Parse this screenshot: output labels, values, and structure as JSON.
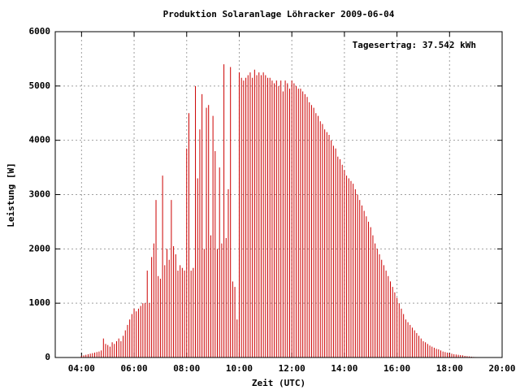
{
  "chart_data": {
    "type": "impulse",
    "title": "Produktion Solaranlage Löhracker 2009-06-04",
    "annotation": "Tagesertrag: 37.542 kWh",
    "xlabel": "Zeit (UTC)",
    "ylabel": "Leistung [W]",
    "color": "#cc0000",
    "grid": true,
    "xlim": [
      "03:00",
      "20:00"
    ],
    "xticks": [
      "04:00",
      "06:00",
      "08:00",
      "10:00",
      "12:00",
      "14:00",
      "16:00",
      "18:00",
      "20:00"
    ],
    "ylim": [
      0,
      6000
    ],
    "yticks": [
      0,
      1000,
      2000,
      3000,
      4000,
      5000,
      6000
    ],
    "x": [
      "04:00",
      "04:05",
      "04:10",
      "04:15",
      "04:20",
      "04:25",
      "04:30",
      "04:35",
      "04:40",
      "04:45",
      "04:50",
      "04:55",
      "05:00",
      "05:05",
      "05:10",
      "05:15",
      "05:20",
      "05:25",
      "05:30",
      "05:35",
      "05:40",
      "05:45",
      "05:50",
      "05:55",
      "06:00",
      "06:05",
      "06:10",
      "06:15",
      "06:20",
      "06:25",
      "06:30",
      "06:35",
      "06:40",
      "06:45",
      "06:50",
      "06:55",
      "07:00",
      "07:05",
      "07:10",
      "07:15",
      "07:20",
      "07:25",
      "07:30",
      "07:35",
      "07:40",
      "07:45",
      "07:50",
      "07:55",
      "08:00",
      "08:05",
      "08:10",
      "08:15",
      "08:20",
      "08:25",
      "08:30",
      "08:35",
      "08:40",
      "08:45",
      "08:50",
      "08:55",
      "09:00",
      "09:05",
      "09:10",
      "09:15",
      "09:20",
      "09:25",
      "09:30",
      "09:35",
      "09:40",
      "09:45",
      "09:50",
      "09:55",
      "10:00",
      "10:05",
      "10:10",
      "10:15",
      "10:20",
      "10:25",
      "10:30",
      "10:35",
      "10:40",
      "10:45",
      "10:50",
      "10:55",
      "11:00",
      "11:05",
      "11:10",
      "11:15",
      "11:20",
      "11:25",
      "11:30",
      "11:35",
      "11:40",
      "11:45",
      "11:50",
      "11:55",
      "12:00",
      "12:05",
      "12:10",
      "12:15",
      "12:20",
      "12:25",
      "12:30",
      "12:35",
      "12:40",
      "12:45",
      "12:50",
      "12:55",
      "13:00",
      "13:05",
      "13:10",
      "13:15",
      "13:20",
      "13:25",
      "13:30",
      "13:35",
      "13:40",
      "13:45",
      "13:50",
      "13:55",
      "14:00",
      "14:05",
      "14:10",
      "14:15",
      "14:20",
      "14:25",
      "14:30",
      "14:35",
      "14:40",
      "14:45",
      "14:50",
      "14:55",
      "15:00",
      "15:05",
      "15:10",
      "15:15",
      "15:20",
      "15:25",
      "15:30",
      "15:35",
      "15:40",
      "15:45",
      "15:50",
      "15:55",
      "16:00",
      "16:05",
      "16:10",
      "16:15",
      "16:20",
      "16:25",
      "16:30",
      "16:35",
      "16:40",
      "16:45",
      "16:50",
      "16:55",
      "17:00",
      "17:05",
      "17:10",
      "17:15",
      "17:20",
      "17:25",
      "17:30",
      "17:35",
      "17:40",
      "17:45",
      "17:50",
      "17:55",
      "18:00",
      "18:05",
      "18:10",
      "18:15",
      "18:20",
      "18:25",
      "18:30",
      "18:35",
      "18:40",
      "18:45",
      "18:50",
      "18:55",
      "19:00",
      "19:05",
      "19:10"
    ],
    "values": [
      30,
      40,
      50,
      60,
      70,
      80,
      90,
      100,
      110,
      130,
      350,
      250,
      230,
      200,
      280,
      250,
      300,
      350,
      300,
      400,
      500,
      600,
      700,
      800,
      900,
      850,
      900,
      950,
      1000,
      1000,
      1600,
      1000,
      1850,
      2100,
      2900,
      1500,
      1450,
      3350,
      1700,
      2000,
      1800,
      2900,
      2050,
      1900,
      1600,
      1700,
      1650,
      1600,
      3850,
      4500,
      1600,
      1650,
      5000,
      3300,
      4200,
      4850,
      2000,
      4600,
      4650,
      2250,
      4450,
      3800,
      2000,
      3500,
      2100,
      5400,
      2200,
      3100,
      5350,
      1400,
      1300,
      700,
      5250,
      5150,
      5100,
      5150,
      5200,
      5250,
      5150,
      5300,
      5200,
      5250,
      5200,
      5250,
      5200,
      5150,
      5150,
      5100,
      5050,
      5100,
      5000,
      5100,
      4900,
      5100,
      5050,
      4950,
      5100,
      5050,
      5000,
      4950,
      4950,
      4900,
      4850,
      4800,
      4700,
      4650,
      4600,
      4500,
      4450,
      4350,
      4300,
      4200,
      4150,
      4100,
      4000,
      3900,
      3850,
      3700,
      3650,
      3550,
      3450,
      3350,
      3300,
      3250,
      3200,
      3100,
      3000,
      2900,
      2800,
      2700,
      2600,
      2500,
      2400,
      2250,
      2100,
      2000,
      1900,
      1800,
      1700,
      1600,
      1500,
      1400,
      1300,
      1200,
      1100,
      1000,
      900,
      800,
      700,
      650,
      600,
      550,
      500,
      450,
      400,
      350,
      300,
      280,
      250,
      220,
      200,
      180,
      160,
      150,
      130,
      110,
      100,
      90,
      80,
      70,
      60,
      55,
      50,
      45,
      40,
      30,
      25,
      20,
      15,
      10,
      8,
      6,
      5
    ]
  }
}
